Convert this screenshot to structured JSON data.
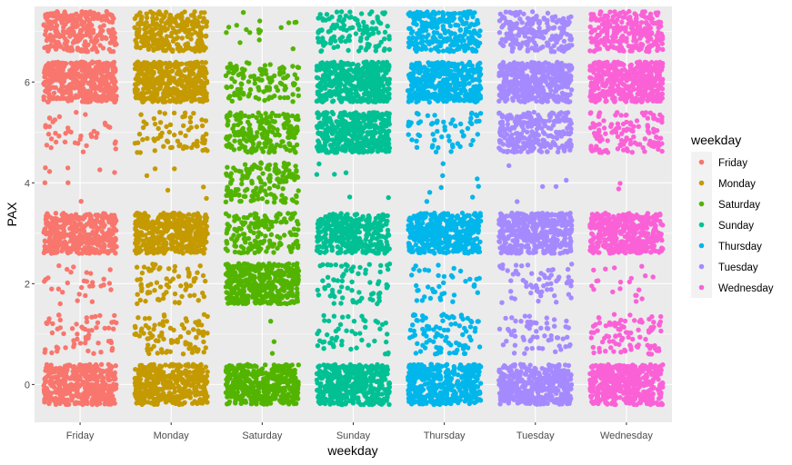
{
  "chart_data": {
    "type": "scatter",
    "jitter": true,
    "xlabel": "weekday",
    "ylabel": "PAX",
    "x_categories": [
      "Friday",
      "Monday",
      "Saturday",
      "Sunday",
      "Thursday",
      "Tuesday",
      "Wednesday"
    ],
    "y_ticks": [
      0,
      2,
      4,
      6
    ],
    "ylim": [
      -0.75,
      7.5
    ],
    "grid": true,
    "legend": {
      "title": "weekday",
      "position": "right",
      "entries": [
        "Friday",
        "Monday",
        "Saturday",
        "Sunday",
        "Thursday",
        "Tuesday",
        "Wednesday"
      ]
    },
    "colors": {
      "Friday": "#F8766D",
      "Monday": "#C49A00",
      "Saturday": "#53B400",
      "Sunday": "#00C094",
      "Thursday": "#00B6EB",
      "Tuesday": "#A58AFF",
      "Wednesday": "#FB61D7"
    },
    "panel_background": "#EBEBEB",
    "approx_point_counts_by_pax": {
      "Friday": [
        420,
        60,
        30,
        420,
        8,
        40,
        420,
        260
      ],
      "Monday": [
        420,
        90,
        70,
        420,
        6,
        70,
        420,
        260
      ],
      "Saturday": [
        420,
        3,
        420,
        160,
        150,
        200,
        120,
        18
      ],
      "Sunday": [
        420,
        50,
        70,
        320,
        6,
        420,
        420,
        120
      ],
      "Thursday": [
        420,
        90,
        40,
        420,
        8,
        60,
        420,
        260
      ],
      "Tuesday": [
        420,
        60,
        60,
        420,
        5,
        260,
        420,
        200
      ],
      "Wednesday": [
        420,
        90,
        20,
        420,
        2,
        120,
        420,
        260
      ]
    }
  }
}
